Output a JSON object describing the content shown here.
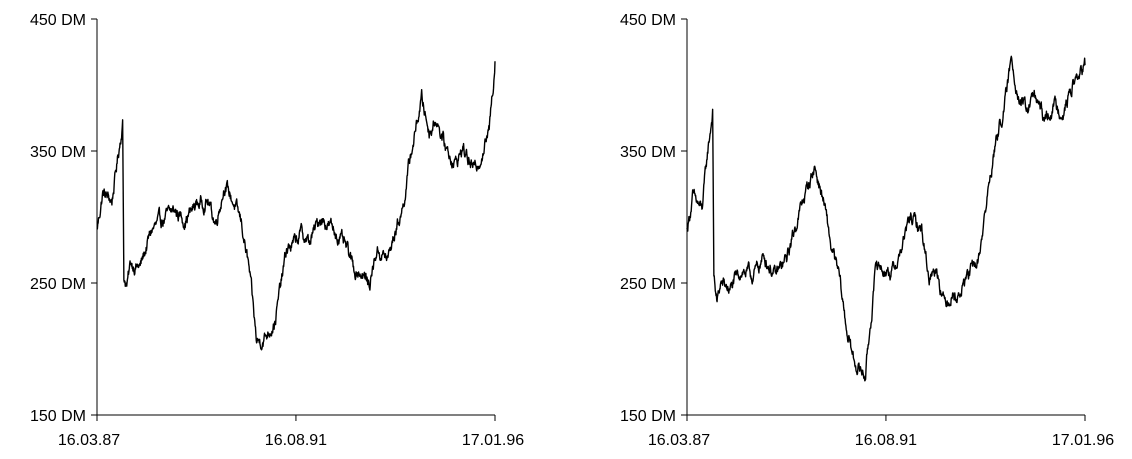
{
  "chart_data": [
    {
      "type": "line",
      "ylim": [
        150,
        450
      ],
      "yticks": [
        {
          "value": 150,
          "label": "150 DM"
        },
        {
          "value": 250,
          "label": "250 DM"
        },
        {
          "value": 350,
          "label": "350 DM"
        },
        {
          "value": 450,
          "label": "450 DM"
        }
      ],
      "xticks": [
        "16.03.87",
        "16.08.91",
        "17.01.96"
      ],
      "xlim": [
        "16.03.87",
        "17.01.96"
      ],
      "grid": false,
      "series": [
        {
          "x": [
            "16.03.87",
            "01.05.87",
            "15.07.87",
            "01.09.87",
            "10.10.87",
            "20.10.87",
            "15.11.87",
            "15.12.87",
            "01.03.88",
            "01.06.88",
            "01.09.88",
            "01.12.88",
            "01.03.89",
            "01.06.89",
            "01.09.89",
            "01.11.89",
            "15.01.90",
            "01.04.90",
            "01.06.90",
            "01.08.90",
            "01.10.90",
            "01.12.90",
            "01.03.91",
            "01.06.91",
            "01.08.91",
            "01.10.91",
            "01.12.91",
            "01.03.92",
            "01.06.92",
            "01.08.92",
            "01.10.92",
            "01.12.92",
            "01.02.93",
            "01.04.93",
            "01.06.93",
            "01.09.93",
            "01.11.93",
            "01.01.94",
            "01.03.94",
            "01.04.94",
            "01.06.94",
            "01.08.94",
            "01.10.94",
            "01.12.94",
            "01.03.95",
            "01.05.95",
            "01.08.95",
            "01.10.95",
            "01.12.95",
            "17.01.96"
          ],
          "y": [
            290,
            318,
            312,
            345,
            372,
            255,
            248,
            265,
            262,
            290,
            298,
            305,
            298,
            310,
            312,
            295,
            325,
            310,
            295,
            260,
            205,
            208,
            222,
            275,
            280,
            288,
            280,
            300,
            292,
            285,
            275,
            260,
            258,
            248,
            275,
            268,
            290,
            308,
            345,
            360,
            390,
            365,
            375,
            355,
            340,
            352,
            335,
            348,
            365,
            418
          ]
        }
      ]
    },
    {
      "type": "line",
      "ylim": [
        150,
        450
      ],
      "yticks": [
        {
          "value": 150,
          "label": "150 DM"
        },
        {
          "value": 250,
          "label": "250 DM"
        },
        {
          "value": 350,
          "label": "350 DM"
        },
        {
          "value": 450,
          "label": "450 DM"
        }
      ],
      "xticks": [
        "16.03.87",
        "16.08.91",
        "17.01.96"
      ],
      "xlim": [
        "16.03.87",
        "17.01.96"
      ],
      "grid": false,
      "series": [
        {
          "x": [
            "16.03.87",
            "01.05.87",
            "15.07.87",
            "01.09.87",
            "10.10.87",
            "20.10.87",
            "15.11.87",
            "15.12.87",
            "01.03.88",
            "01.06.88",
            "01.09.88",
            "01.12.88",
            "01.03.89",
            "01.06.89",
            "01.09.89",
            "01.11.89",
            "15.01.90",
            "01.04.90",
            "01.06.90",
            "01.08.90",
            "01.10.90",
            "01.12.90",
            "01.03.91",
            "01.06.91",
            "01.08.91",
            "01.10.91",
            "01.12.91",
            "01.03.92",
            "01.06.92",
            "01.08.92",
            "01.10.92",
            "01.12.92",
            "01.02.93",
            "01.04.93",
            "01.06.93",
            "01.09.93",
            "01.11.93",
            "01.01.94",
            "01.03.94",
            "01.04.94",
            "01.06.94",
            "01.08.94",
            "01.10.94",
            "01.12.94",
            "01.03.95",
            "01.05.95",
            "01.08.95",
            "01.10.95",
            "01.12.95",
            "17.01.96"
          ],
          "y": [
            290,
            315,
            305,
            350,
            380,
            255,
            235,
            250,
            245,
            260,
            255,
            270,
            255,
            268,
            300,
            318,
            338,
            310,
            275,
            255,
            215,
            190,
            180,
            265,
            260,
            258,
            270,
            300,
            290,
            255,
            262,
            235,
            242,
            240,
            255,
            265,
            305,
            345,
            372,
            382,
            420,
            390,
            380,
            392,
            372,
            385,
            380,
            398,
            408,
            415
          ]
        }
      ]
    }
  ]
}
